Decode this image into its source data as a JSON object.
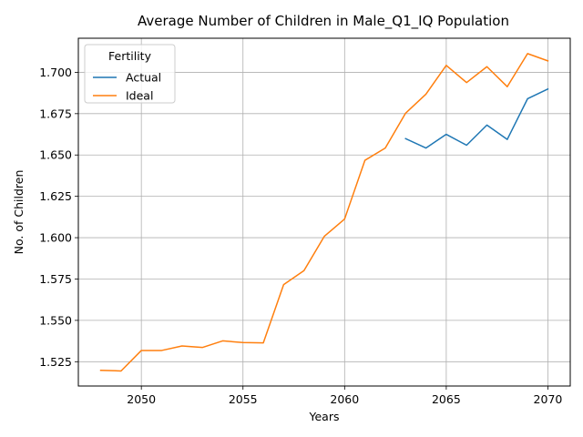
{
  "chart_data": {
    "type": "line",
    "title": "Average Number of Children in Male_Q1_IQ Population",
    "xlabel": "Years",
    "ylabel": "No. of Children",
    "xlim": [
      2046.9,
      2071.1
    ],
    "ylim": [
      1.5103,
      1.7206
    ],
    "x_ticks": [
      2050,
      2055,
      2060,
      2065,
      2070
    ],
    "y_ticks": [
      1.525,
      1.55,
      1.575,
      1.6,
      1.625,
      1.65,
      1.675,
      1.7
    ],
    "y_tick_labels": [
      "1.525",
      "1.550",
      "1.575",
      "1.600",
      "1.625",
      "1.650",
      "1.675",
      "1.700"
    ],
    "grid": true,
    "legend": {
      "title": "Fertility",
      "placement": "top-left"
    },
    "series": [
      {
        "name": "Actual",
        "color": "#1f77b4",
        "x": [
          2063,
          2064,
          2065,
          2066,
          2067,
          2068,
          2069,
          2070
        ],
        "y": [
          1.6599,
          1.6542,
          1.6625,
          1.6559,
          1.6681,
          1.6594,
          1.684,
          1.6899
        ]
      },
      {
        "name": "Ideal",
        "color": "#ff7f0e",
        "x": [
          2048,
          2049,
          2050,
          2051,
          2052,
          2053,
          2054,
          2055,
          2056,
          2057,
          2058,
          2059,
          2060,
          2061,
          2062,
          2063,
          2064,
          2065,
          2066,
          2067,
          2068,
          2069,
          2070
        ],
        "y": [
          1.5198,
          1.5194,
          1.5318,
          1.5318,
          1.5345,
          1.5336,
          1.5376,
          1.5366,
          1.5364,
          1.5716,
          1.5801,
          1.6008,
          1.6113,
          1.6468,
          1.6542,
          1.6753,
          1.6868,
          1.7042,
          1.6938,
          1.7034,
          1.6913,
          1.7113,
          1.7069
        ]
      }
    ]
  }
}
